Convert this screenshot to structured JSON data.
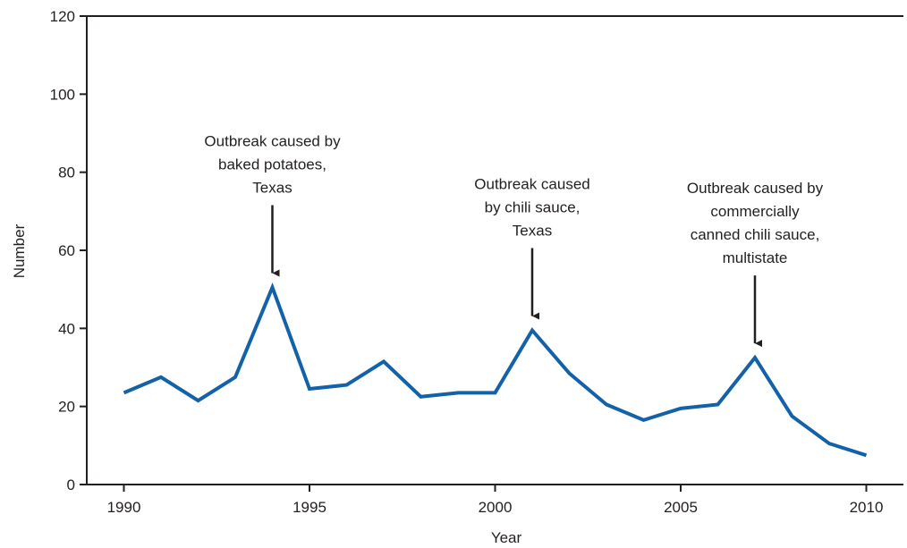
{
  "chart_data": {
    "type": "line",
    "title": "",
    "xlabel": "Year",
    "ylabel": "Number",
    "xlim": [
      1989,
      2011
    ],
    "ylim": [
      0,
      120
    ],
    "x_ticks": [
      1990,
      1995,
      2000,
      2005,
      2010
    ],
    "y_ticks": [
      0,
      20,
      40,
      60,
      80,
      100,
      120
    ],
    "grid": false,
    "legend": "none",
    "series": [
      {
        "color": "#1361a8",
        "x": [
          1990,
          1991,
          1992,
          1993,
          1994,
          1995,
          1996,
          1997,
          1998,
          1999,
          2000,
          2001,
          2002,
          2003,
          2004,
          2005,
          2006,
          2007,
          2008,
          2009,
          2010
        ],
        "values": [
          23.5,
          27.5,
          21.5,
          27.5,
          50.5,
          24.5,
          25.5,
          31.5,
          22.5,
          23.5,
          23.5,
          39.5,
          28.5,
          20.5,
          16.5,
          19.5,
          20.5,
          32.5,
          17.5,
          10.5,
          7.5
        ]
      }
    ],
    "annotations": [
      {
        "x": 1994,
        "lines": [
          "Outbreak caused by",
          "baked potatoes,",
          "Texas"
        ]
      },
      {
        "x": 2001,
        "lines": [
          "Outbreak caused",
          "by chili sauce,",
          "Texas"
        ]
      },
      {
        "x": 2007,
        "lines": [
          "Outbreak caused by",
          "commercially",
          "canned chili sauce,",
          "multistate"
        ]
      }
    ]
  }
}
